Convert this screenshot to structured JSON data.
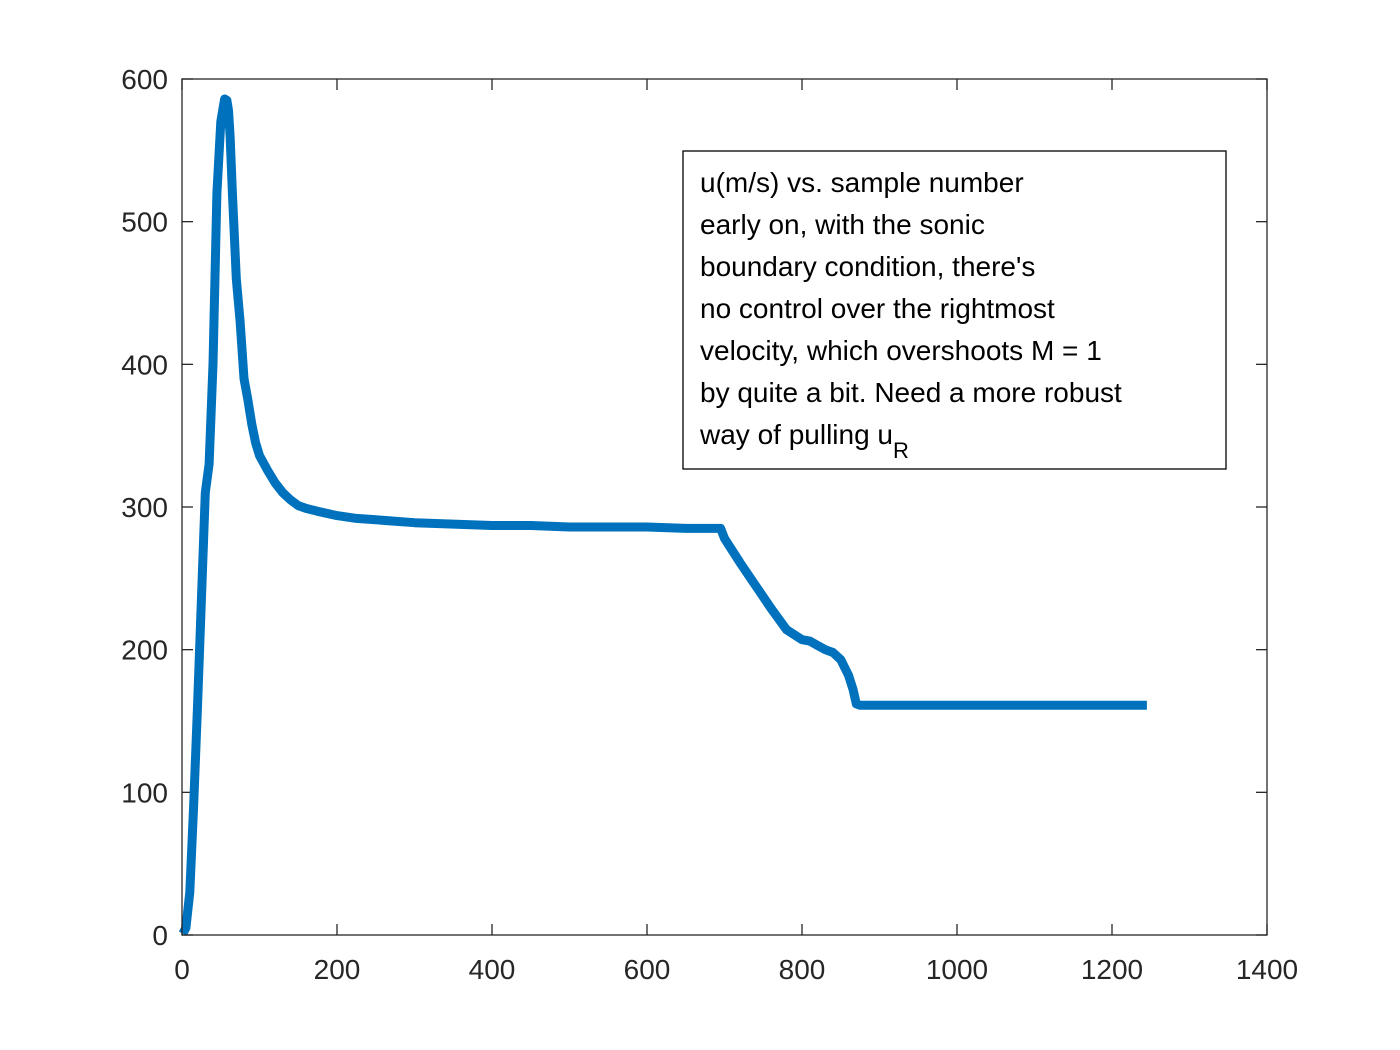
{
  "chart_data": {
    "type": "line",
    "title": "",
    "xlabel": "",
    "ylabel": "",
    "xlim": [
      0,
      1400
    ],
    "ylim": [
      0,
      600
    ],
    "xticks": [
      0,
      200,
      400,
      600,
      800,
      1000,
      1200,
      1400
    ],
    "yticks": [
      0,
      100,
      200,
      300,
      400,
      500,
      600
    ],
    "xtick_labels": [
      "0",
      "200",
      "400",
      "600",
      "800",
      "1000",
      "1200",
      "1400"
    ],
    "ytick_labels": [
      "0",
      "100",
      "200",
      "300",
      "400",
      "500",
      "600"
    ],
    "grid": false,
    "legend": "none",
    "series_color": "#0072BD",
    "series": [
      {
        "x": [
          1,
          5,
          10,
          15,
          20,
          25,
          30,
          35,
          40,
          45,
          50,
          55,
          58,
          60,
          62,
          65,
          70,
          75,
          80,
          85,
          90,
          95,
          100,
          110,
          120,
          130,
          140,
          150,
          160,
          175,
          200,
          225,
          250,
          300,
          350,
          400,
          450,
          500,
          550,
          600,
          650,
          690,
          695,
          700,
          720,
          740,
          760,
          780,
          800,
          810,
          820,
          830,
          840,
          850,
          860,
          866,
          870,
          875,
          880,
          900,
          1000,
          1100,
          1200,
          1245
        ],
        "y": [
          1,
          5,
          30,
          90,
          160,
          235,
          310,
          330,
          400,
          520,
          570,
          586,
          585,
          578,
          560,
          520,
          460,
          430,
          390,
          375,
          358,
          345,
          336,
          326,
          317,
          310,
          305,
          301,
          299,
          297,
          294,
          292,
          291,
          289,
          288,
          287,
          287,
          286,
          286,
          286,
          285,
          285,
          285,
          278,
          261,
          245,
          229,
          214,
          207,
          206,
          203,
          200,
          198,
          193,
          182,
          172,
          162,
          161,
          161,
          161,
          161,
          161,
          161,
          161
        ]
      }
    ],
    "annotation": {
      "lines": [
        "u(m/s) vs. sample number",
        "early on, with the sonic",
        "boundary condition, there's",
        "no control over the rightmost",
        "velocity, which overshoots M = 1",
        "by quite a bit. Need a more robust"
      ],
      "last_line_main": "way of pulling u",
      "last_line_subscript": "R"
    }
  }
}
